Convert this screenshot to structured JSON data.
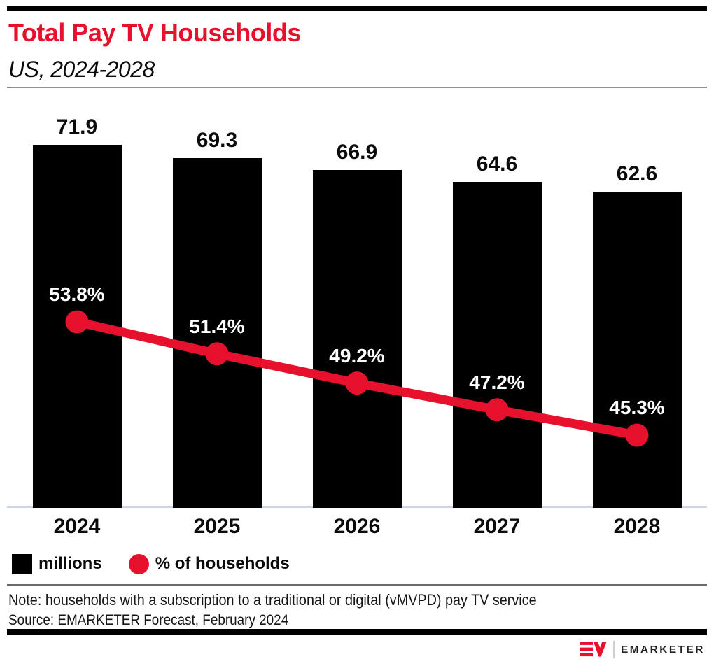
{
  "page": {
    "title": "Total Pay TV Households",
    "subtitle": "US, 2024-2028"
  },
  "chart_data": {
    "type": "bar",
    "subtype": "bar-line-combo",
    "title": "Total Pay TV Households",
    "subtitle": "US, 2024-2028",
    "categories": [
      "2024",
      "2025",
      "2026",
      "2027",
      "2028"
    ],
    "series": [
      {
        "name": "millions",
        "type": "bar",
        "color": "#000000",
        "values": [
          71.9,
          69.3,
          66.9,
          64.6,
          62.6
        ],
        "labels": [
          "71.9",
          "69.3",
          "66.9",
          "64.6",
          "62.6"
        ],
        "ylim": [
          0,
          75
        ]
      },
      {
        "name": "% of households",
        "type": "line",
        "color": "#e8112d",
        "values": [
          53.8,
          51.4,
          49.2,
          47.2,
          45.3
        ],
        "labels": [
          "53.8%",
          "51.4%",
          "49.2%",
          "47.2%",
          "45.3%"
        ]
      }
    ],
    "xlabel": "",
    "ylabel": "",
    "grid": false,
    "data_labels": true,
    "legend_position": "bottom-left"
  },
  "legend": {
    "items": [
      {
        "label": "millions",
        "swatch": "square",
        "color": "#000000"
      },
      {
        "label": "% of households",
        "swatch": "circle",
        "color": "#e8112d"
      }
    ]
  },
  "footer": {
    "note": "Note: households with a subscription to a traditional or digital (vMVPD) pay TV service",
    "source": "Source: EMARKETER Forecast, February 2024",
    "logo_text": "EMARKETER"
  },
  "colors": {
    "accent_red": "#e8112d",
    "bar_black": "#000000",
    "axis_line": "#ccd5e4",
    "logo_text": "#252122"
  }
}
